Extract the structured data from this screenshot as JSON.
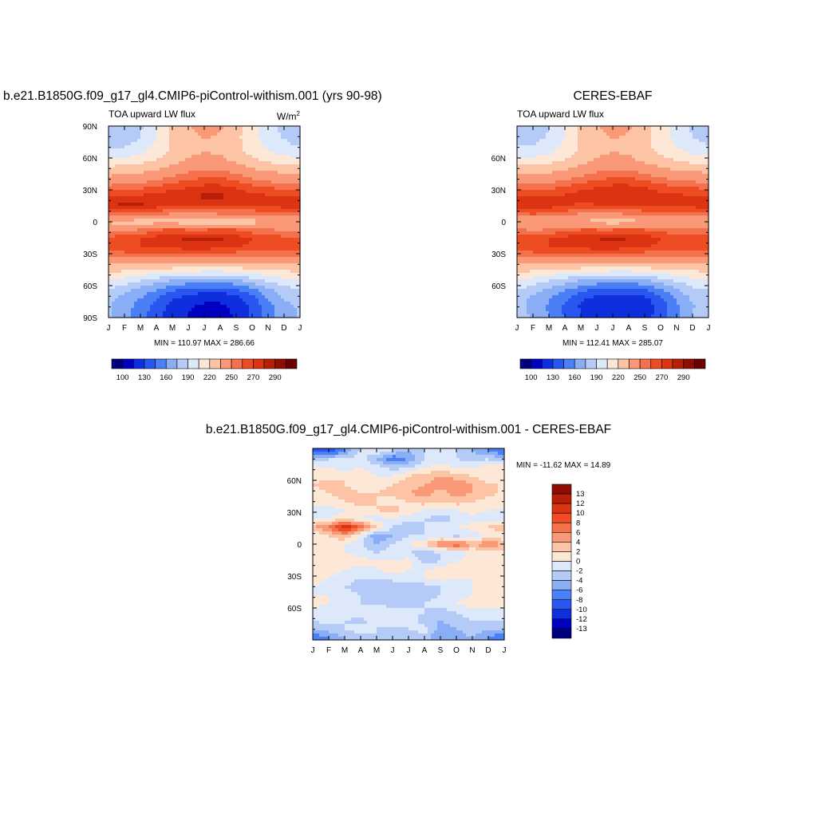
{
  "chart_data": [
    {
      "id": "model",
      "type": "heatmap",
      "title": "b.e21.B1850G.f09_g17_gl4.CMIP6-piControl-withism.001 (yrs 90-98)",
      "subtitle": "TOA upward LW flux",
      "units_prefix": "W/m",
      "units_exp": "2",
      "x_ticks": [
        "J",
        "F",
        "M",
        "A",
        "M",
        "J",
        "J",
        "A",
        "S",
        "O",
        "N",
        "D",
        "J"
      ],
      "y_ticks": [
        "90N",
        "60N",
        "30N",
        "0",
        "30S",
        "60S",
        "90S"
      ],
      "ylim": [
        -90,
        90
      ],
      "stats_label": "MIN = 110.97  MAX = 286.66",
      "colorbar_labels": [
        "100",
        "130",
        "160",
        "190",
        "220",
        "250",
        "270",
        "290"
      ],
      "rows_lat": [
        88,
        80,
        72,
        64,
        56,
        48,
        40,
        32,
        24,
        16,
        8,
        0,
        -8,
        -16,
        -24,
        -32,
        -40,
        -48,
        -56,
        -64,
        -72,
        -80,
        -88
      ],
      "values": [
        [
          178,
          180,
          188,
          205,
          222,
          234,
          238,
          236,
          226,
          210,
          196,
          186,
          180
        ],
        [
          180,
          182,
          190,
          205,
          222,
          232,
          236,
          234,
          224,
          210,
          198,
          188,
          182
        ],
        [
          185,
          188,
          195,
          208,
          222,
          230,
          234,
          232,
          224,
          212,
          202,
          194,
          188
        ],
        [
          196,
          198,
          204,
          212,
          224,
          232,
          236,
          234,
          226,
          216,
          208,
          202,
          198
        ],
        [
          212,
          214,
          218,
          224,
          232,
          238,
          242,
          240,
          234,
          226,
          220,
          216,
          214
        ],
        [
          228,
          230,
          232,
          236,
          242,
          248,
          252,
          250,
          246,
          238,
          234,
          232,
          230
        ],
        [
          240,
          242,
          244,
          248,
          254,
          258,
          262,
          262,
          258,
          250,
          246,
          244,
          242
        ],
        [
          254,
          256,
          258,
          262,
          268,
          270,
          274,
          274,
          270,
          264,
          260,
          258,
          256
        ],
        [
          270,
          272,
          272,
          274,
          276,
          280,
          282,
          282,
          278,
          274,
          272,
          272,
          270
        ],
        [
          278,
          282,
          282,
          276,
          270,
          272,
          274,
          276,
          274,
          272,
          272,
          276,
          278
        ],
        [
          258,
          262,
          262,
          256,
          250,
          248,
          250,
          252,
          252,
          254,
          256,
          258,
          258
        ],
        [
          232,
          230,
          228,
          230,
          230,
          226,
          224,
          226,
          228,
          230,
          232,
          232,
          232
        ],
        [
          250,
          248,
          252,
          260,
          264,
          262,
          262,
          264,
          262,
          256,
          252,
          250,
          250
        ],
        [
          264,
          266,
          270,
          274,
          278,
          282,
          284,
          282,
          276,
          270,
          266,
          264,
          264
        ],
        [
          266,
          268,
          270,
          272,
          272,
          274,
          274,
          272,
          270,
          268,
          266,
          266,
          266
        ],
        [
          252,
          254,
          256,
          256,
          256,
          256,
          256,
          254,
          252,
          252,
          252,
          252,
          252
        ],
        [
          234,
          236,
          236,
          236,
          234,
          234,
          234,
          234,
          234,
          234,
          234,
          234,
          234
        ],
        [
          218,
          216,
          212,
          206,
          202,
          200,
          198,
          198,
          200,
          206,
          212,
          216,
          218
        ],
        [
          202,
          196,
          188,
          180,
          172,
          168,
          166,
          166,
          170,
          180,
          190,
          198,
          202
        ],
        [
          188,
          180,
          170,
          160,
          148,
          140,
          136,
          136,
          142,
          156,
          172,
          184,
          188
        ],
        [
          180,
          170,
          160,
          146,
          132,
          122,
          118,
          118,
          124,
          140,
          160,
          176,
          180
        ],
        [
          176,
          166,
          154,
          138,
          124,
          116,
          112,
          112,
          118,
          134,
          154,
          172,
          176
        ],
        [
          176,
          166,
          152,
          136,
          122,
          115,
          111,
          111,
          116,
          132,
          152,
          170,
          176
        ]
      ]
    },
    {
      "id": "obs",
      "type": "heatmap",
      "title": "CERES-EBAF",
      "subtitle": "TOA upward LW flux",
      "x_ticks": [
        "J",
        "F",
        "M",
        "A",
        "M",
        "J",
        "J",
        "A",
        "S",
        "O",
        "N",
        "D",
        "J"
      ],
      "y_ticks": [
        "60N",
        "30N",
        "0",
        "30S",
        "60S"
      ],
      "ylim": [
        -90,
        90
      ],
      "stats_label": "MIN = 112.41  MAX = 285.07",
      "colorbar_labels": [
        "100",
        "130",
        "160",
        "190",
        "220",
        "250",
        "270",
        "290"
      ],
      "rows_lat": [
        88,
        80,
        72,
        64,
        56,
        48,
        40,
        32,
        24,
        16,
        8,
        0,
        -8,
        -16,
        -24,
        -32,
        -40,
        -48,
        -56,
        -64,
        -72,
        -80,
        -88
      ],
      "values": [
        [
          180,
          182,
          190,
          206,
          222,
          234,
          238,
          236,
          226,
          212,
          198,
          188,
          182
        ],
        [
          182,
          184,
          192,
          206,
          222,
          232,
          236,
          234,
          224,
          212,
          200,
          190,
          184
        ],
        [
          188,
          190,
          196,
          208,
          222,
          230,
          234,
          232,
          224,
          214,
          204,
          196,
          190
        ],
        [
          198,
          200,
          204,
          212,
          224,
          232,
          236,
          234,
          226,
          218,
          210,
          204,
          200
        ],
        [
          214,
          214,
          218,
          224,
          232,
          238,
          242,
          240,
          234,
          228,
          222,
          218,
          216
        ],
        [
          230,
          230,
          232,
          236,
          242,
          248,
          252,
          250,
          246,
          240,
          236,
          234,
          232
        ],
        [
          242,
          242,
          244,
          248,
          254,
          258,
          262,
          262,
          258,
          252,
          248,
          246,
          244
        ],
        [
          256,
          256,
          258,
          262,
          268,
          270,
          274,
          274,
          270,
          266,
          262,
          260,
          258
        ],
        [
          270,
          270,
          270,
          272,
          274,
          278,
          280,
          280,
          278,
          274,
          272,
          272,
          270
        ],
        [
          276,
          278,
          276,
          272,
          268,
          270,
          272,
          274,
          274,
          272,
          272,
          274,
          276
        ],
        [
          260,
          262,
          260,
          256,
          250,
          248,
          250,
          252,
          254,
          256,
          258,
          260,
          260
        ],
        [
          236,
          234,
          234,
          236,
          234,
          230,
          228,
          230,
          232,
          234,
          236,
          236,
          236
        ],
        [
          252,
          250,
          252,
          258,
          262,
          262,
          262,
          264,
          262,
          258,
          254,
          252,
          252
        ],
        [
          264,
          266,
          270,
          274,
          278,
          280,
          282,
          280,
          276,
          270,
          266,
          264,
          264
        ],
        [
          266,
          268,
          270,
          272,
          272,
          274,
          274,
          272,
          270,
          268,
          266,
          266,
          266
        ],
        [
          252,
          254,
          256,
          256,
          256,
          256,
          256,
          254,
          252,
          252,
          252,
          252,
          252
        ],
        [
          234,
          236,
          236,
          236,
          234,
          234,
          234,
          234,
          234,
          234,
          234,
          234,
          234
        ],
        [
          218,
          216,
          212,
          206,
          202,
          200,
          198,
          198,
          200,
          206,
          212,
          216,
          218
        ],
        [
          202,
          196,
          188,
          180,
          172,
          168,
          166,
          166,
          170,
          180,
          190,
          198,
          202
        ],
        [
          190,
          182,
          172,
          162,
          150,
          142,
          138,
          138,
          144,
          158,
          174,
          186,
          190
        ],
        [
          182,
          172,
          162,
          148,
          134,
          124,
          120,
          120,
          126,
          142,
          162,
          178,
          182
        ],
        [
          180,
          170,
          158,
          142,
          128,
          120,
          116,
          116,
          120,
          136,
          156,
          174,
          180
        ],
        [
          182,
          172,
          160,
          144,
          130,
          122,
          118,
          118,
          122,
          138,
          158,
          176,
          182
        ]
      ]
    },
    {
      "id": "diff",
      "type": "heatmap",
      "title": "b.e21.B1850G.f09_g17_gl4.CMIP6-piControl-withism.001 - CERES-EBAF",
      "x_ticks": [
        "J",
        "F",
        "M",
        "A",
        "M",
        "J",
        "J",
        "A",
        "S",
        "O",
        "N",
        "D",
        "J"
      ],
      "y_ticks": [
        "60N",
        "30N",
        "0",
        "30S",
        "60S"
      ],
      "ylim": [
        -90,
        90
      ],
      "stats_label": "MIN = -11.62 MAX =  14.89",
      "colorbar_labels": [
        "13",
        "12",
        "10",
        "8",
        "6",
        "4",
        "2",
        "0",
        "-2",
        "-4",
        "-6",
        "-8",
        "-10",
        "-12",
        "-13"
      ],
      "rows_lat": [
        88,
        80,
        72,
        64,
        56,
        48,
        40,
        32,
        24,
        16,
        8,
        0,
        -8,
        -16,
        -24,
        -32,
        -40,
        -48,
        -56,
        -64,
        -72,
        -80,
        -88
      ],
      "values": [
        [
          -8,
          -10,
          -6,
          -2,
          0,
          -2,
          -4,
          -2,
          0,
          -2,
          -4,
          -6,
          -8
        ],
        [
          -4,
          -2,
          -2,
          -1,
          -4,
          -8,
          -6,
          -2,
          -1,
          -2,
          -3,
          -2,
          -4
        ],
        [
          1,
          0,
          -1,
          0,
          -1,
          -3,
          -2,
          0,
          1,
          0,
          0,
          1,
          1
        ],
        [
          1,
          1,
          2,
          1,
          0,
          0,
          2,
          3,
          4,
          3,
          2,
          1,
          1
        ],
        [
          2,
          3,
          2,
          1,
          1,
          2,
          3,
          4,
          5,
          6,
          4,
          2,
          2
        ],
        [
          1,
          2,
          3,
          2,
          2,
          3,
          4,
          5,
          3,
          5,
          4,
          3,
          1
        ],
        [
          0,
          1,
          2,
          3,
          2,
          1,
          2,
          3,
          2,
          3,
          2,
          1,
          0
        ],
        [
          0,
          -1,
          0,
          1,
          2,
          3,
          1,
          0,
          -1,
          0,
          1,
          0,
          0
        ],
        [
          -1,
          0,
          1,
          0,
          -1,
          0,
          -1,
          -2,
          -3,
          -2,
          -1,
          -1,
          -1
        ],
        [
          4,
          6,
          12,
          8,
          2,
          -2,
          -4,
          -2,
          -1,
          0,
          1,
          2,
          4
        ],
        [
          0,
          2,
          4,
          0,
          -6,
          -4,
          -2,
          -2,
          -1,
          -3,
          -1,
          0,
          0
        ],
        [
          2,
          1,
          0,
          -2,
          -4,
          -2,
          0,
          2,
          6,
          8,
          4,
          6,
          4
        ],
        [
          1,
          0,
          0,
          -1,
          -2,
          -1,
          -2,
          -3,
          -2,
          -1,
          0,
          1,
          1
        ],
        [
          1,
          1,
          2,
          1,
          0,
          0,
          1,
          -3,
          -2,
          0,
          1,
          1,
          1
        ],
        [
          2,
          1,
          0,
          -1,
          0,
          1,
          0,
          0,
          1,
          2,
          1,
          2,
          2
        ],
        [
          1,
          0,
          -1,
          -2,
          -2,
          -1,
          -1,
          0,
          1,
          0,
          0,
          1,
          1
        ],
        [
          0,
          -1,
          -2,
          -3,
          -4,
          -4,
          -4,
          -3,
          -2,
          -1,
          0,
          0,
          0
        ],
        [
          0,
          0,
          -1,
          -2,
          -3,
          -4,
          -4,
          -3,
          -2,
          -1,
          0,
          0,
          0
        ],
        [
          1,
          0,
          -1,
          -2,
          -2,
          -3,
          -3,
          -2,
          -1,
          0,
          1,
          1,
          1
        ],
        [
          -1,
          -2,
          -1,
          0,
          0,
          -1,
          -1,
          -2,
          -3,
          -2,
          -1,
          -1,
          -1
        ],
        [
          -2,
          -1,
          -2,
          -3,
          -1,
          0,
          -1,
          -3,
          -4,
          -3,
          -2,
          -2,
          -2
        ],
        [
          -4,
          -3,
          -2,
          -1,
          -2,
          -3,
          -2,
          -1,
          -5,
          -4,
          -3,
          -4,
          -4
        ],
        [
          -8,
          -6,
          -4,
          -3,
          -2,
          -3,
          -4,
          -3,
          -6,
          -5,
          -4,
          -6,
          -8
        ]
      ]
    }
  ]
}
